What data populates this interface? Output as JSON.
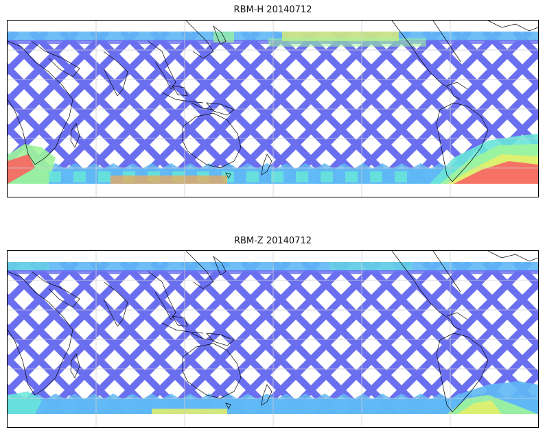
{
  "panels": [
    {
      "title": "RBM-H 20140712",
      "colors": {
        "track": "#6a6ff0",
        "mid": "#5fb8f5",
        "cyan": "#69e6d8",
        "green": "#9ef59a",
        "yellow": "#e6f06a",
        "orange": "#f7a64f",
        "red": "#f66a64"
      }
    },
    {
      "title": "RBM-Z 20140712",
      "colors": {
        "track": "#6a6ff0",
        "mid": "#5fb8f5",
        "cyan": "#69e6d8",
        "green": "#9ef59a",
        "yellow": "#e6f06a",
        "orange": "#f7a64f",
        "red": "#f66a64"
      }
    }
  ],
  "coastline_color": "#000000",
  "grid_color": "#cfcfcf"
}
